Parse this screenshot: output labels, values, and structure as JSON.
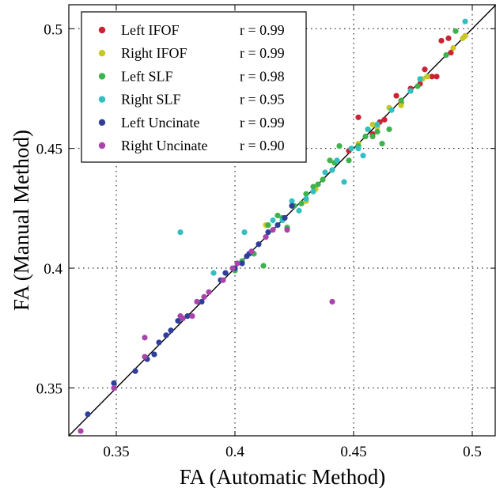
{
  "chart_data": {
    "type": "scatter",
    "xlabel": "FA (Automatic Method)",
    "ylabel": "FA (Manual Method)",
    "xlim": [
      0.33,
      0.51
    ],
    "ylim": [
      0.33,
      0.51
    ],
    "xticks": [
      "0.35",
      "0.4",
      "0.45",
      "0.5"
    ],
    "yticks": [
      "0.35",
      "0.4",
      "0.45",
      "0.5"
    ],
    "grid": true,
    "legend_position": "top-left",
    "identity_line": true,
    "series": [
      {
        "name": "Left IFOF",
        "r": "r = 0.99",
        "color": "#cc2233",
        "points": [
          [
            0.452,
            0.463
          ],
          [
            0.458,
            0.456
          ],
          [
            0.463,
            0.462
          ],
          [
            0.468,
            0.472
          ],
          [
            0.47,
            0.469
          ],
          [
            0.474,
            0.475
          ],
          [
            0.478,
            0.477
          ],
          [
            0.48,
            0.483
          ],
          [
            0.483,
            0.48
          ],
          [
            0.485,
            0.48
          ],
          [
            0.487,
            0.495
          ],
          [
            0.49,
            0.496
          ],
          [
            0.491,
            0.49
          ],
          [
            0.497,
            0.497
          ],
          [
            0.448,
            0.449
          ],
          [
            0.461,
            0.461
          ]
        ]
      },
      {
        "name": "Right IFOF",
        "r": "r = 0.99",
        "color": "#c8c825",
        "points": [
          [
            0.413,
            0.418
          ],
          [
            0.428,
            0.427
          ],
          [
            0.43,
            0.428
          ],
          [
            0.434,
            0.433
          ],
          [
            0.437,
            0.437
          ],
          [
            0.452,
            0.452
          ],
          [
            0.456,
            0.458
          ],
          [
            0.458,
            0.46
          ],
          [
            0.46,
            0.459
          ],
          [
            0.465,
            0.467
          ],
          [
            0.47,
            0.468
          ],
          [
            0.474,
            0.474
          ],
          [
            0.479,
            0.479
          ],
          [
            0.481,
            0.48
          ],
          [
            0.492,
            0.492
          ],
          [
            0.496,
            0.496
          ],
          [
            0.497,
            0.497
          ]
        ]
      },
      {
        "name": "Left SLF",
        "r": "r = 0.98",
        "color": "#3cb44b",
        "points": [
          [
            0.4,
            0.399
          ],
          [
            0.403,
            0.403
          ],
          [
            0.408,
            0.406
          ],
          [
            0.412,
            0.401
          ],
          [
            0.414,
            0.418
          ],
          [
            0.418,
            0.422
          ],
          [
            0.42,
            0.421
          ],
          [
            0.422,
            0.417
          ],
          [
            0.425,
            0.426
          ],
          [
            0.428,
            0.427
          ],
          [
            0.43,
            0.431
          ],
          [
            0.433,
            0.434
          ],
          [
            0.435,
            0.435
          ],
          [
            0.437,
            0.437
          ],
          [
            0.44,
            0.445
          ],
          [
            0.442,
            0.444
          ],
          [
            0.444,
            0.451
          ],
          [
            0.448,
            0.445
          ],
          [
            0.452,
            0.451
          ],
          [
            0.455,
            0.455
          ],
          [
            0.458,
            0.455
          ],
          [
            0.46,
            0.457
          ],
          [
            0.462,
            0.452
          ],
          [
            0.465,
            0.458
          ],
          [
            0.47,
            0.47
          ],
          [
            0.477,
            0.476
          ],
          [
            0.489,
            0.489
          ],
          [
            0.493,
            0.499
          ]
        ]
      },
      {
        "name": "Right SLF",
        "r": "r = 0.95",
        "color": "#33bfc0",
        "points": [
          [
            0.377,
            0.415
          ],
          [
            0.391,
            0.398
          ],
          [
            0.404,
            0.415
          ],
          [
            0.413,
            0.413
          ],
          [
            0.416,
            0.42
          ],
          [
            0.42,
            0.42
          ],
          [
            0.424,
            0.428
          ],
          [
            0.427,
            0.424
          ],
          [
            0.43,
            0.429
          ],
          [
            0.433,
            0.432
          ],
          [
            0.438,
            0.44
          ],
          [
            0.441,
            0.441
          ],
          [
            0.443,
            0.445
          ],
          [
            0.446,
            0.436
          ],
          [
            0.449,
            0.45
          ],
          [
            0.452,
            0.45
          ],
          [
            0.454,
            0.447
          ],
          [
            0.456,
            0.458
          ],
          [
            0.46,
            0.46
          ],
          [
            0.466,
            0.466
          ],
          [
            0.474,
            0.474
          ],
          [
            0.478,
            0.479
          ],
          [
            0.497,
            0.503
          ]
        ]
      },
      {
        "name": "Left Uncinate",
        "r": "r = 0.99",
        "color": "#2e3e9a",
        "points": [
          [
            0.338,
            0.339
          ],
          [
            0.349,
            0.352
          ],
          [
            0.358,
            0.357
          ],
          [
            0.363,
            0.362
          ],
          [
            0.366,
            0.364
          ],
          [
            0.368,
            0.369
          ],
          [
            0.371,
            0.372
          ],
          [
            0.373,
            0.374
          ],
          [
            0.376,
            0.378
          ],
          [
            0.378,
            0.379
          ],
          [
            0.38,
            0.38
          ],
          [
            0.386,
            0.386
          ],
          [
            0.394,
            0.395
          ],
          [
            0.396,
            0.398
          ],
          [
            0.4,
            0.4
          ],
          [
            0.403,
            0.402
          ],
          [
            0.405,
            0.405
          ],
          [
            0.406,
            0.406
          ],
          [
            0.41,
            0.41
          ],
          [
            0.414,
            0.415
          ],
          [
            0.418,
            0.418
          ],
          [
            0.421,
            0.421
          ],
          [
            0.424,
            0.426
          ]
        ]
      },
      {
        "name": "Right Uncinate",
        "r": "r = 0.90",
        "color": "#aa44aa",
        "points": [
          [
            0.335,
            0.332
          ],
          [
            0.349,
            0.35
          ],
          [
            0.362,
            0.371
          ],
          [
            0.362,
            0.363
          ],
          [
            0.377,
            0.38
          ],
          [
            0.378,
            0.379
          ],
          [
            0.382,
            0.38
          ],
          [
            0.384,
            0.386
          ],
          [
            0.387,
            0.388
          ],
          [
            0.389,
            0.39
          ],
          [
            0.395,
            0.395
          ],
          [
            0.399,
            0.4
          ],
          [
            0.401,
            0.402
          ],
          [
            0.407,
            0.407
          ],
          [
            0.413,
            0.413
          ],
          [
            0.416,
            0.416
          ],
          [
            0.422,
            0.416
          ],
          [
            0.441,
            0.386
          ]
        ]
      }
    ]
  }
}
